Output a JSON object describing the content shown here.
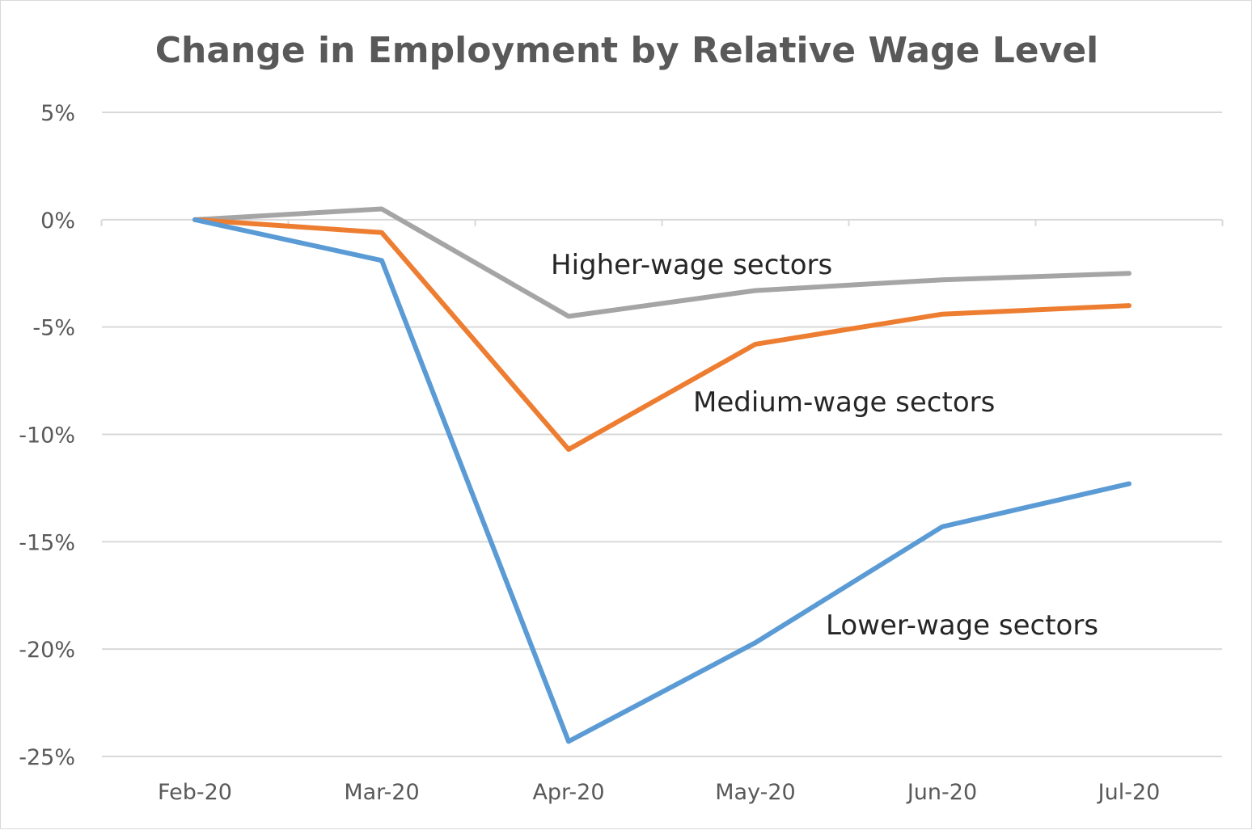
{
  "chart_data": {
    "type": "line",
    "title": "Change in Employment by Relative Wage Level",
    "xlabel": "",
    "ylabel": "",
    "categories": [
      "Feb-20",
      "Mar-20",
      "Apr-20",
      "May-20",
      "Jun-20",
      "Jul-20"
    ],
    "ylim": [
      -25,
      5
    ],
    "yticks": [
      5,
      0,
      -5,
      -10,
      -15,
      -20,
      -25
    ],
    "ytick_labels": [
      "5%",
      "0%",
      "-5%",
      "-10%",
      "-15%",
      "-20%",
      "-25%"
    ],
    "grid": true,
    "legend": "none (series labeled directly on chart)",
    "series": [
      {
        "name": "Higher-wage sectors",
        "color": "#a5a5a5",
        "values": [
          0,
          0.5,
          -4.5,
          -3.3,
          -2.8,
          -2.5
        ]
      },
      {
        "name": "Medium-wage sectors",
        "color": "#ed7d31",
        "values": [
          0,
          -0.6,
          -10.7,
          -5.8,
          -4.4,
          -4.0
        ]
      },
      {
        "name": "Lower-wage sectors",
        "color": "#5b9bd5",
        "values": [
          0,
          -1.9,
          -24.3,
          -19.7,
          -14.3,
          -12.3
        ]
      }
    ]
  }
}
